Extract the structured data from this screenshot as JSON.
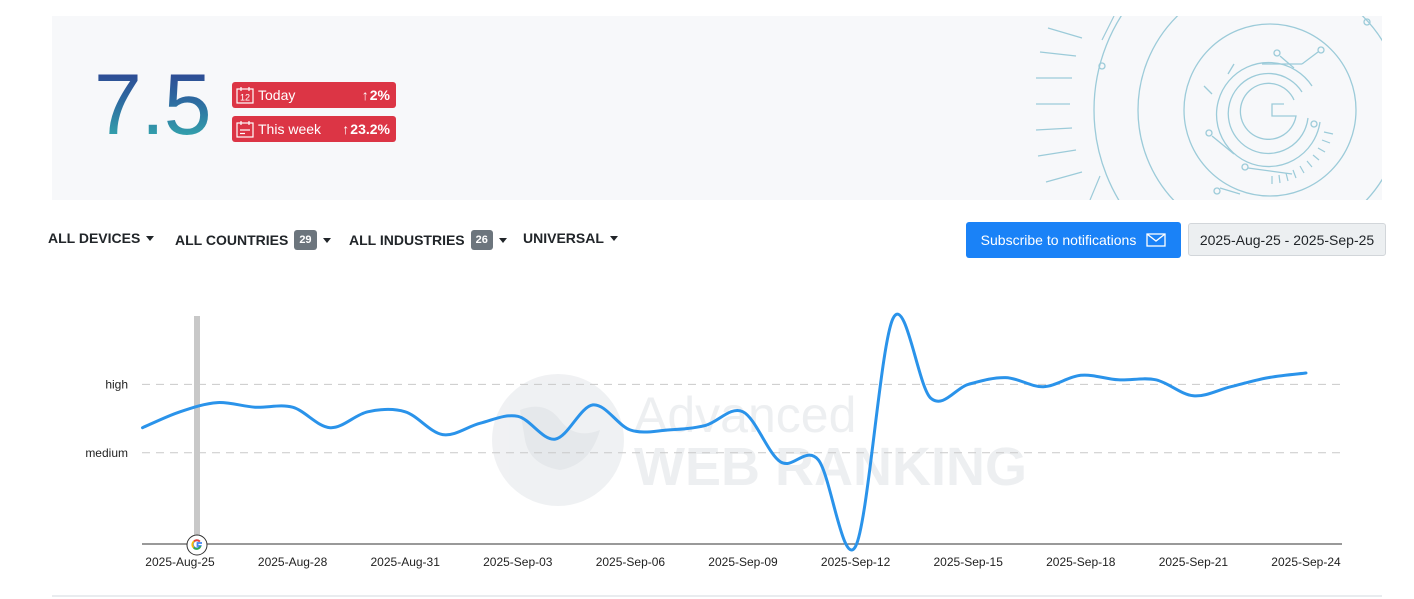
{
  "summary": {
    "score": "7.5",
    "badges": [
      {
        "icon": "calendar-day-icon",
        "calendar_number": "12",
        "label": "Today",
        "arrow": "↑",
        "change": "2%"
      },
      {
        "icon": "calendar-week-icon",
        "label": "This week",
        "arrow": "↑",
        "change": "23.2%"
      }
    ]
  },
  "filters": {
    "devices": {
      "label": "ALL DEVICES"
    },
    "countries": {
      "label": "ALL COUNTRIES",
      "count": "29"
    },
    "industries": {
      "label": "ALL INDUSTRIES",
      "count": "26"
    },
    "universal": {
      "label": "UNIVERSAL"
    }
  },
  "actions": {
    "subscribe_label": "Subscribe to notifications",
    "subscribe_icon": "envelope-icon",
    "date_range": "2025-Aug-25 - 2025-Sep-25"
  },
  "colors": {
    "badge": "#dc3545",
    "primary": "#1a82f7",
    "line": "#2a93ea",
    "marker": "#c8c8c8",
    "score_gradient": [
      "#2d3f8f",
      "#35b3b0"
    ]
  },
  "watermark": {
    "line1": "Advanced",
    "line2": "WEB RANKING"
  },
  "chart_data": {
    "type": "line",
    "y_levels": [
      {
        "label": "high",
        "value": 8
      },
      {
        "label": "medium",
        "value": 5
      }
    ],
    "ylim": [
      1,
      11
    ],
    "xlim": [
      "2025-Aug-25",
      "2025-Sep-24"
    ],
    "x_ticks": [
      "2025-Aug-25",
      "2025-Aug-28",
      "2025-Aug-31",
      "2025-Sep-03",
      "2025-Sep-06",
      "2025-Sep-09",
      "2025-Sep-12",
      "2025-Sep-15",
      "2025-Sep-18",
      "2025-Sep-21",
      "2025-Sep-24"
    ],
    "marker": {
      "x": "2025-Aug-25",
      "icon": "google-update-icon"
    },
    "series": [
      {
        "x": [
          "2025-Aug-24",
          "2025-Aug-25",
          "2025-Aug-26",
          "2025-Aug-27",
          "2025-Aug-28",
          "2025-Aug-29",
          "2025-Aug-30",
          "2025-Aug-31",
          "2025-Sep-01",
          "2025-Sep-02",
          "2025-Sep-03",
          "2025-Sep-04",
          "2025-Sep-05",
          "2025-Sep-06",
          "2025-Sep-07",
          "2025-Sep-08",
          "2025-Sep-09",
          "2025-Sep-10",
          "2025-Sep-11",
          "2025-Sep-12",
          "2025-Sep-13",
          "2025-Sep-14",
          "2025-Sep-15",
          "2025-Sep-16",
          "2025-Sep-17",
          "2025-Sep-18",
          "2025-Sep-19",
          "2025-Sep-20",
          "2025-Sep-21",
          "2025-Sep-22",
          "2025-Sep-23",
          "2025-Sep-24"
        ],
        "values": [
          6.1,
          6.8,
          7.2,
          7.0,
          7.0,
          6.1,
          6.8,
          6.8,
          5.8,
          6.3,
          6.6,
          5.6,
          7.1,
          6.0,
          6.0,
          6.2,
          6.8,
          4.6,
          4.7,
          0.9,
          10.9,
          7.4,
          8.0,
          8.3,
          7.9,
          8.4,
          8.2,
          8.2,
          7.5,
          7.9,
          8.3,
          8.5
        ]
      }
    ]
  }
}
